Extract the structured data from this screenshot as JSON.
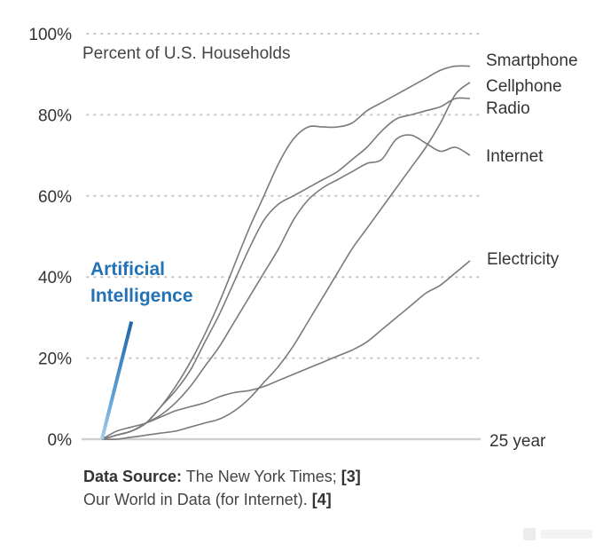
{
  "chart_data": {
    "type": "line",
    "title": "",
    "ylabel": "Percent of U.S. Households",
    "xlabel": "",
    "x_unit": "years since introduction",
    "xlim": [
      0,
      25
    ],
    "ylim": [
      0,
      100
    ],
    "y_ticks": [
      "0%",
      "20%",
      "40%",
      "60%",
      "80%",
      "100%"
    ],
    "y_tick_values": [
      0,
      20,
      40,
      60,
      80,
      100
    ],
    "x_end_label": "25 year",
    "grid": "horizontal dotted",
    "series": [
      {
        "name": "Smartphone",
        "label": "Smartphone",
        "x": [
          0,
          1,
          2,
          3,
          4,
          5,
          6,
          7,
          8,
          9,
          10,
          11,
          12,
          13,
          14,
          15,
          16,
          17,
          18,
          19,
          20,
          21,
          22,
          23,
          24,
          25
        ],
        "y": [
          0,
          1,
          2,
          4,
          8,
          13,
          19,
          26,
          34,
          43,
          52,
          60,
          68,
          74,
          77,
          77,
          77,
          78,
          81,
          83,
          85,
          87,
          89,
          91,
          92,
          92
        ]
      },
      {
        "name": "Cellphone",
        "label": "Cellphone",
        "x": [
          0,
          1,
          2,
          3,
          4,
          5,
          6,
          7,
          8,
          9,
          10,
          11,
          12,
          13,
          14,
          15,
          16,
          17,
          18,
          19,
          20,
          21,
          22,
          23,
          24,
          25
        ],
        "y": [
          0,
          0,
          0.5,
          1,
          1.5,
          2,
          3,
          4,
          5,
          7,
          10,
          14,
          18,
          23,
          29,
          35,
          41,
          47,
          52,
          57,
          62,
          67,
          72,
          78,
          85,
          88
        ]
      },
      {
        "name": "Radio",
        "label": "Radio",
        "x": [
          0,
          1,
          2,
          3,
          4,
          5,
          6,
          7,
          8,
          9,
          10,
          11,
          12,
          13,
          14,
          15,
          16,
          17,
          18,
          19,
          20,
          21,
          22,
          23,
          24,
          25
        ],
        "y": [
          0,
          1,
          2,
          4,
          8,
          12,
          17,
          24,
          31,
          39,
          47,
          54,
          58,
          60,
          62,
          64,
          66,
          69,
          72,
          76,
          79,
          80,
          81,
          82,
          84,
          84
        ]
      },
      {
        "name": "Internet",
        "label": "Internet",
        "x": [
          0,
          1,
          2,
          3,
          4,
          5,
          6,
          7,
          8,
          9,
          10,
          11,
          12,
          13,
          14,
          15,
          16,
          17,
          18,
          19,
          20,
          21,
          22,
          23,
          24,
          25
        ],
        "y": [
          0,
          1,
          2,
          4,
          6,
          9,
          13,
          18,
          23,
          29,
          35,
          41,
          47,
          54,
          59,
          62,
          64,
          66,
          68,
          69,
          74,
          75,
          73,
          71,
          72,
          70
        ]
      },
      {
        "name": "Electricity",
        "label": "Electricity",
        "x": [
          0,
          1,
          2,
          3,
          4,
          5,
          6,
          7,
          8,
          9,
          10,
          11,
          12,
          13,
          14,
          15,
          16,
          17,
          18,
          19,
          20,
          21,
          22,
          23,
          24,
          25
        ],
        "y": [
          0,
          2,
          3,
          4,
          5.5,
          7,
          8,
          9,
          10.5,
          11.5,
          12,
          13,
          14.5,
          16,
          17.5,
          19,
          20.5,
          22,
          24,
          27,
          30,
          33,
          36,
          38,
          41,
          44
        ]
      },
      {
        "name": "Artificial Intelligence",
        "label": "Artificial Intelligence",
        "x": [
          0,
          2
        ],
        "y": [
          0,
          29
        ],
        "color": "#2a78bd"
      }
    ],
    "line_color": "#7a7a7a",
    "ai_color": "#2a78bd"
  },
  "labels": {
    "ylabel": "Percent of U.S. Households",
    "ai_line1": "Artificial",
    "ai_line2": "Intelligence",
    "x_end": "25 year"
  },
  "source": {
    "prefix": "Data Source:",
    "line1_rest": " The New York Times; ",
    "ref1": "[3]",
    "line2": "Our World in Data (for Internet). ",
    "ref2": "[4]"
  }
}
